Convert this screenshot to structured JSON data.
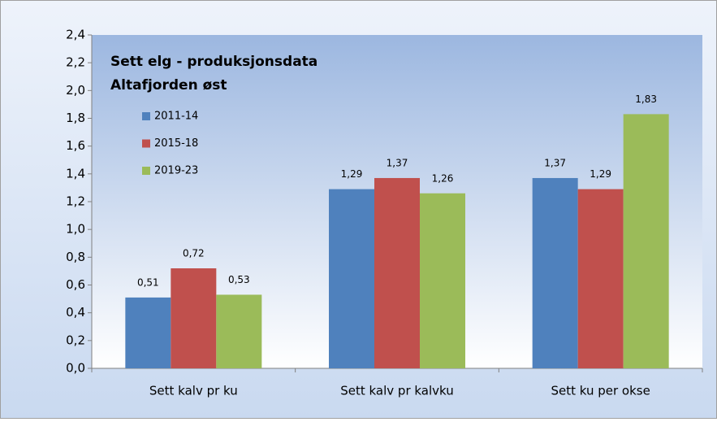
{
  "chart_data": {
    "type": "bar",
    "title": "Sett elg - produksjonsdata",
    "subtitle": "Altafjorden øst",
    "categories": [
      "Sett kalv pr ku",
      "Sett kalv pr kalvku",
      "Sett ku per okse"
    ],
    "series": [
      {
        "name": "2011-14",
        "color": "#4f81bd",
        "values": [
          0.51,
          1.29,
          1.37
        ],
        "value_labels": [
          "0,51",
          "1,29",
          "1,37"
        ]
      },
      {
        "name": "2015-18",
        "color": "#c0504d",
        "values": [
          0.72,
          1.37,
          1.29
        ],
        "value_labels": [
          "0,72",
          "1,37",
          "1,29"
        ]
      },
      {
        "name": "2019-23",
        "color": "#9bbb59",
        "values": [
          0.53,
          1.26,
          1.83
        ],
        "value_labels": [
          "0,53",
          "1,26",
          "1,83"
        ]
      }
    ],
    "ylim": [
      0,
      2.4
    ],
    "yticks": [
      {
        "value": 0,
        "label": "0,0"
      },
      {
        "value": 0.2,
        "label": "0,2"
      },
      {
        "value": 0.4,
        "label": "0,4"
      },
      {
        "value": 0.6,
        "label": "0,6"
      },
      {
        "value": 0.8,
        "label": "0,8"
      },
      {
        "value": 1.0,
        "label": "1,0"
      },
      {
        "value": 1.2,
        "label": "1,2"
      },
      {
        "value": 1.4,
        "label": "1,4"
      },
      {
        "value": 1.6,
        "label": "1,6"
      },
      {
        "value": 1.8,
        "label": "1,8"
      },
      {
        "value": 2.0,
        "label": "2,0"
      },
      {
        "value": 2.2,
        "label": "2,2"
      },
      {
        "value": 2.4,
        "label": "2,4"
      }
    ],
    "legend": "top-left"
  }
}
